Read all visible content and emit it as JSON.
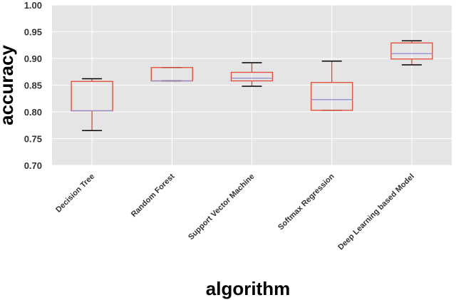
{
  "chart_data": {
    "type": "box",
    "xlabel": "algorithm",
    "ylabel": "accuracy",
    "ylim": [
      0.7,
      1.0
    ],
    "yticks": [
      "0.70",
      "0.75",
      "0.80",
      "0.85",
      "0.90",
      "0.95",
      "1.00"
    ],
    "ytick_values": [
      0.7,
      0.75,
      0.8,
      0.85,
      0.9,
      0.95,
      1.0
    ],
    "grid": true,
    "categories": [
      "Decision Tree",
      "Random Forest",
      "Support Vector Machine",
      "Softmax Regression",
      "Deep Learning based Model"
    ],
    "boxes": [
      {
        "whisker_low": 0.765,
        "q1": 0.802,
        "median": 0.802,
        "q3": 0.857,
        "whisker_high": 0.862
      },
      {
        "whisker_low": 0.858,
        "q1": 0.858,
        "median": 0.858,
        "q3": 0.883,
        "whisker_high": 0.883
      },
      {
        "whisker_low": 0.848,
        "q1": 0.858,
        "median": 0.863,
        "q3": 0.874,
        "whisker_high": 0.892
      },
      {
        "whisker_low": 0.803,
        "q1": 0.803,
        "median": 0.823,
        "q3": 0.855,
        "whisker_high": 0.895
      },
      {
        "whisker_low": 0.888,
        "q1": 0.899,
        "median": 0.909,
        "q3": 0.929,
        "whisker_high": 0.933
      }
    ]
  },
  "colors": {
    "plot_bg": "#e5e5e5",
    "grid": "#ffffff",
    "box": "#e24a33",
    "median": "#8eba42",
    "median_alt": "#8a8ad0",
    "whisker": "#e24a33",
    "cap": "#000000"
  }
}
